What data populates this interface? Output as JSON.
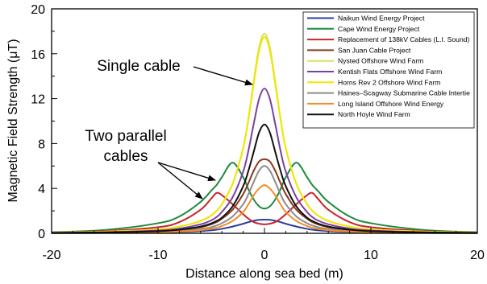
{
  "chart_data": {
    "type": "line",
    "title": "",
    "xlabel": "Distance along sea bed (m)",
    "ylabel": "Magnetic Field Strength (μT)",
    "xlim": [
      -20,
      20
    ],
    "ylim": [
      0,
      20
    ],
    "xticks": [
      "-20",
      "-10",
      "0",
      "10",
      "20"
    ],
    "yticks": [
      "0",
      "4",
      "8",
      "12",
      "16",
      "20"
    ],
    "grid": false,
    "legend_position": "top-right",
    "annotations": {
      "single": "Single cable",
      "two_line1": "Two parallel",
      "two_line2": "cables"
    },
    "x": [
      -20,
      -15,
      -10,
      -8,
      -6,
      -5,
      -4.5,
      -4,
      -3,
      -2,
      -1.5,
      -1,
      -0.5,
      0,
      0.5,
      1,
      1.5,
      2,
      3,
      4,
      4.5,
      5,
      6,
      8,
      10,
      15,
      20
    ],
    "series": [
      {
        "name": "Naikun Wind Energy Project",
        "color": "#2b3fa0",
        "values": [
          0.02,
          0.04,
          0.08,
          0.12,
          0.2,
          0.27,
          0.32,
          0.4,
          0.6,
          0.85,
          1.0,
          1.12,
          1.2,
          1.22,
          1.2,
          1.12,
          1.0,
          0.85,
          0.6,
          0.4,
          0.32,
          0.27,
          0.2,
          0.12,
          0.08,
          0.04,
          0.02
        ]
      },
      {
        "name": "Cape Wind Energy Project",
        "color": "#1f8a3c",
        "values": [
          0.1,
          0.3,
          0.9,
          1.5,
          2.8,
          3.8,
          4.3,
          5.0,
          6.3,
          5.0,
          3.9,
          3.0,
          2.4,
          2.2,
          2.4,
          3.0,
          3.9,
          5.0,
          6.3,
          5.0,
          4.3,
          3.8,
          2.8,
          1.5,
          0.9,
          0.3,
          0.1
        ]
      },
      {
        "name": "Replacement of 138kV Cables (L.I. Sound)",
        "color": "#c8252b",
        "values": [
          0.05,
          0.2,
          0.55,
          1.0,
          2.1,
          3.1,
          3.6,
          3.4,
          2.6,
          1.7,
          1.3,
          1.0,
          0.85,
          0.8,
          0.85,
          1.0,
          1.3,
          1.7,
          2.6,
          3.4,
          3.6,
          3.1,
          2.1,
          1.0,
          0.55,
          0.2,
          0.05
        ]
      },
      {
        "name": "San Juan Cable Project",
        "color": "#8b3a1e",
        "values": [
          0.03,
          0.07,
          0.16,
          0.28,
          0.55,
          0.8,
          1.0,
          1.3,
          2.1,
          3.5,
          4.5,
          5.6,
          6.4,
          6.6,
          6.4,
          5.6,
          4.5,
          3.5,
          2.1,
          1.3,
          1.0,
          0.8,
          0.55,
          0.28,
          0.16,
          0.07,
          0.03
        ]
      },
      {
        "name": "Nysted Offshore Wind Farm",
        "color": "#d9e25a",
        "values": [
          0.07,
          0.15,
          0.35,
          0.6,
          1.1,
          1.6,
          2.0,
          2.6,
          4.4,
          7.6,
          10.3,
          13.6,
          16.6,
          17.8,
          16.6,
          13.6,
          10.3,
          7.6,
          4.4,
          2.6,
          2.0,
          1.6,
          1.1,
          0.6,
          0.35,
          0.15,
          0.07
        ]
      },
      {
        "name": "Kentish Flats Offshore Wind Farm",
        "color": "#7b3fa0",
        "values": [
          0.05,
          0.1,
          0.25,
          0.42,
          0.8,
          1.15,
          1.45,
          1.9,
          3.2,
          5.5,
          7.4,
          9.8,
          12.0,
          12.9,
          12.0,
          9.8,
          7.4,
          5.5,
          3.2,
          1.9,
          1.45,
          1.15,
          0.8,
          0.42,
          0.25,
          0.1,
          0.05
        ]
      },
      {
        "name": "Horns Rev 2 Offshore Wind Farm",
        "color": "#f2e600",
        "values": [
          0.07,
          0.15,
          0.35,
          0.6,
          1.1,
          1.6,
          2.0,
          2.6,
          4.4,
          7.6,
          10.2,
          13.4,
          16.3,
          17.5,
          16.3,
          13.4,
          10.2,
          7.6,
          4.4,
          2.6,
          2.0,
          1.6,
          1.1,
          0.6,
          0.35,
          0.15,
          0.07
        ]
      },
      {
        "name": "Haines–Scagway Submarine Cable Intertie",
        "color": "#8c8c8c",
        "values": [
          0.02,
          0.05,
          0.12,
          0.2,
          0.38,
          0.55,
          0.7,
          0.9,
          1.5,
          2.6,
          3.5,
          4.6,
          5.6,
          6.0,
          5.6,
          4.6,
          3.5,
          2.6,
          1.5,
          0.9,
          0.7,
          0.55,
          0.38,
          0.2,
          0.12,
          0.05,
          0.02
        ]
      },
      {
        "name": "Long Island Offshore Wind Energy",
        "color": "#f28c28",
        "values": [
          0.02,
          0.04,
          0.09,
          0.15,
          0.28,
          0.4,
          0.5,
          0.65,
          1.1,
          1.9,
          2.6,
          3.4,
          4.0,
          4.3,
          4.0,
          3.4,
          2.6,
          1.9,
          1.1,
          0.65,
          0.5,
          0.4,
          0.28,
          0.15,
          0.09,
          0.04,
          0.02
        ]
      },
      {
        "name": "North Hoyle Wind Farm",
        "color": "#111111",
        "values": [
          0.04,
          0.08,
          0.19,
          0.32,
          0.6,
          0.88,
          1.1,
          1.4,
          2.4,
          4.2,
          5.6,
          7.3,
          9.0,
          9.7,
          9.0,
          7.3,
          5.6,
          4.2,
          2.4,
          1.4,
          1.1,
          0.88,
          0.6,
          0.32,
          0.19,
          0.08,
          0.04
        ]
      }
    ]
  }
}
